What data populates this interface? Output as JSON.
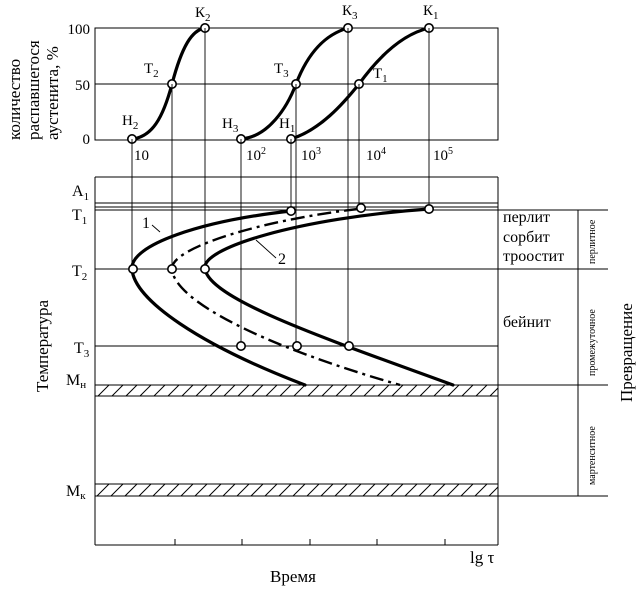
{
  "top_chart": {
    "ylabel_lines": [
      "количество",
      "распавшегося",
      "аустенита, %"
    ],
    "y_ticks": [
      "100",
      "50",
      "0"
    ],
    "x_ticks": [
      {
        "base": "10",
        "exp": ""
      },
      {
        "base": "10",
        "exp": "2"
      },
      {
        "base": "10",
        "exp": "3"
      },
      {
        "base": "10",
        "exp": "4"
      },
      {
        "base": "10",
        "exp": "5"
      }
    ],
    "kinetic_labels": [
      {
        "main": "Н",
        "sub": "2"
      },
      {
        "main": "Т",
        "sub": "2"
      },
      {
        "main": "К",
        "sub": "2"
      },
      {
        "main": "Н",
        "sub": "3"
      },
      {
        "main": "Т",
        "sub": "3"
      },
      {
        "main": "К",
        "sub": "3"
      },
      {
        "main": "Н",
        "sub": "1"
      },
      {
        "main": "Т",
        "sub": "1"
      },
      {
        "main": "К",
        "sub": "1"
      }
    ]
  },
  "bottom_chart": {
    "ylabel": "Температура",
    "xlabel": "Время",
    "x_axis_symbol": "lg τ",
    "temp_labels": [
      {
        "main": "A",
        "sub": "1"
      },
      {
        "main": "T",
        "sub": "1"
      },
      {
        "main": "T",
        "sub": "2"
      },
      {
        "main": "T",
        "sub": "3"
      },
      {
        "main": "M",
        "sub": "н"
      },
      {
        "main": "M",
        "sub": "к"
      }
    ],
    "curve_labels": [
      "1",
      "2"
    ],
    "products": [
      "перлит",
      "сорбит",
      "троостит",
      "бейнит"
    ],
    "zones": [
      "перлитное",
      "промежуточное",
      "мартенситное"
    ],
    "right_label": "Превращение"
  }
}
